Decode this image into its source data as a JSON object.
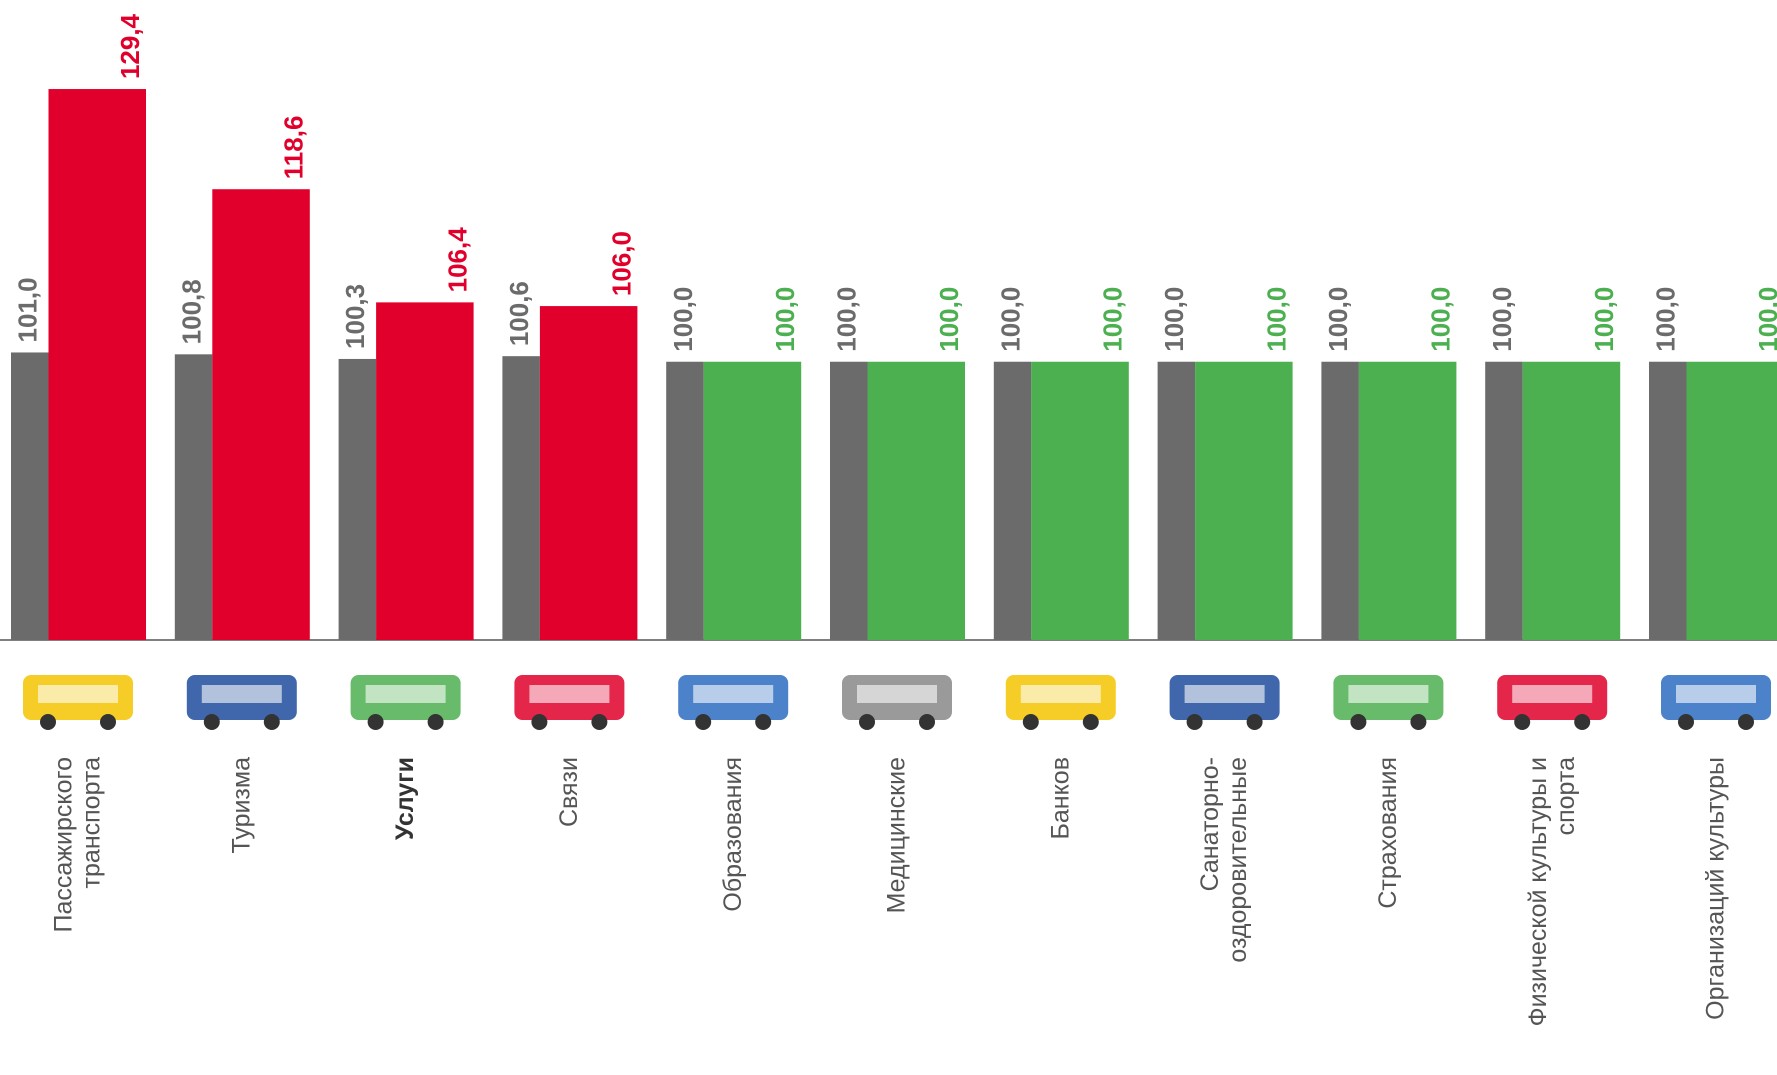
{
  "chart_data": {
    "type": "bar",
    "categories": [
      [
        "Пассажирского",
        "транспорта"
      ],
      [
        "Туризма"
      ],
      [
        "Услуги"
      ],
      [
        "Связи"
      ],
      [
        "Образования"
      ],
      [
        "Медицинские"
      ],
      [
        "Банков"
      ],
      [
        "Санаторно-",
        "оздоровительные"
      ],
      [
        "Страхования"
      ],
      [
        "Физической культуры и",
        "спорта"
      ],
      [
        "Организаций культуры"
      ]
    ],
    "highlight_category": 2,
    "series": [
      {
        "color": "#6b6b6b",
        "values": [
          101.0,
          100.8,
          100.3,
          100.6,
          100.0,
          100.0,
          100.0,
          100.0,
          100.0,
          100.0,
          100.0
        ],
        "value_labels": [
          "101,0",
          "100,8",
          "100,3",
          "100,6",
          "100,0",
          "100,0",
          "100,0",
          "100,0",
          "100,0",
          "100,0",
          "100,0"
        ]
      },
      {
        "colors": [
          "#e0002b",
          "#e0002b",
          "#e0002b",
          "#e0002b",
          "#4caf50",
          "#4caf50",
          "#4caf50",
          "#4caf50",
          "#4caf50",
          "#4caf50",
          "#4caf50"
        ],
        "values": [
          129.4,
          118.6,
          106.4,
          106.0,
          100.0,
          100.0,
          100.0,
          100.0,
          100.0,
          100.0,
          100.0
        ],
        "value_labels": [
          "129,4",
          "118,6",
          "106,4",
          "106,0",
          "100,0",
          "100,0",
          "100,0",
          "100,0",
          "100,0",
          "100,0",
          "100,0"
        ]
      }
    ],
    "ylim": [
      70,
      139
    ]
  }
}
